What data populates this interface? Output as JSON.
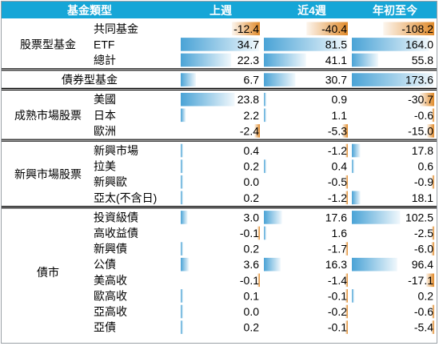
{
  "header": {
    "fund_type": "基金類型",
    "col_week": "上週",
    "col_4week": "近4週",
    "col_ytd": "年初至今"
  },
  "colors": {
    "header_bg": "#16a6d7",
    "positive_bar": "#4aa3d6",
    "negative_bar": "#e08a2a",
    "group_line": "#000000"
  },
  "groups": [
    {
      "name": "股票型基金",
      "rows": [
        {
          "label": "共同基金",
          "week": "-12.4",
          "four_week": "-40.4",
          "ytd": "-108.2"
        },
        {
          "label": "ETF",
          "week": "34.7",
          "four_week": "81.5",
          "ytd": "164.0"
        },
        {
          "label": "總計",
          "week": "22.3",
          "four_week": "41.1",
          "ytd": "55.8"
        }
      ]
    },
    {
      "name": "債券型基金",
      "rows": [
        {
          "label": "",
          "week": "6.7",
          "four_week": "30.7",
          "ytd": "173.6"
        }
      ]
    },
    {
      "name": "成熟市場股票",
      "rows": [
        {
          "label": "美國",
          "week": "23.8",
          "four_week": "0.9",
          "ytd": "-30.7"
        },
        {
          "label": "日本",
          "week": "2.2",
          "four_week": "1.1",
          "ytd": "-0.6"
        },
        {
          "label": "歐洲",
          "week": "-2.4",
          "four_week": "-5.3",
          "ytd": "-15.0"
        }
      ]
    },
    {
      "name": "新興市場股票",
      "rows": [
        {
          "label": "新興市場",
          "week": "0.4",
          "four_week": "-1.2",
          "ytd": "17.8"
        },
        {
          "label": "拉美",
          "week": "0.2",
          "four_week": "0.4",
          "ytd": "0.6"
        },
        {
          "label": "新興歐",
          "week": "0.0",
          "four_week": "-0.5",
          "ytd": "-0.9"
        },
        {
          "label": "亞太(不含日)",
          "week": "0.2",
          "four_week": "-1.2",
          "ytd": "18.1"
        }
      ]
    },
    {
      "name": "債市",
      "rows": [
        {
          "label": "投資級債",
          "week": "3.0",
          "four_week": "17.6",
          "ytd": "102.5"
        },
        {
          "label": "高收益債",
          "week": "-0.1",
          "four_week": "1.6",
          "ytd": "-2.5"
        },
        {
          "label": "新興債",
          "week": "0.2",
          "four_week": "-1.7",
          "ytd": "-6.0"
        },
        {
          "label": "公債",
          "week": "3.6",
          "four_week": "16.3",
          "ytd": "96.4"
        },
        {
          "label": "美高收",
          "week": "-0.1",
          "four_week": "-1.4",
          "ytd": "-17.1"
        },
        {
          "label": "歐高收",
          "week": "0.1",
          "four_week": "-0.1",
          "ytd": "0.2"
        },
        {
          "label": "亞高收",
          "week": "0.0",
          "four_week": "-0.2",
          "ytd": "-0.6"
        },
        {
          "label": "亞債",
          "week": "0.2",
          "four_week": "-0.1",
          "ytd": "-5.4"
        }
      ]
    }
  ],
  "chart_data": {
    "type": "table",
    "columns": [
      "基金類型",
      "上週",
      "近4週",
      "年初至今"
    ],
    "series": [
      {
        "name": "上週",
        "values": [
          -12.4,
          34.7,
          22.3,
          6.7,
          23.8,
          2.2,
          -2.4,
          0.4,
          0.2,
          0.0,
          0.2,
          3.0,
          -0.1,
          0.2,
          3.6,
          -0.1,
          0.1,
          0.0,
          0.2
        ]
      },
      {
        "name": "近4週",
        "values": [
          -40.4,
          81.5,
          41.1,
          30.7,
          0.9,
          1.1,
          -5.3,
          -1.2,
          0.4,
          -0.5,
          -1.2,
          17.6,
          1.6,
          -1.7,
          16.3,
          -1.4,
          -0.1,
          -0.2,
          -0.1
        ]
      },
      {
        "name": "年初至今",
        "values": [
          -108.2,
          164.0,
          55.8,
          173.6,
          -30.7,
          -0.6,
          -15.0,
          17.8,
          0.6,
          -0.9,
          18.1,
          102.5,
          -2.5,
          -6.0,
          96.4,
          -17.1,
          0.2,
          -0.6,
          -5.4
        ]
      }
    ]
  }
}
